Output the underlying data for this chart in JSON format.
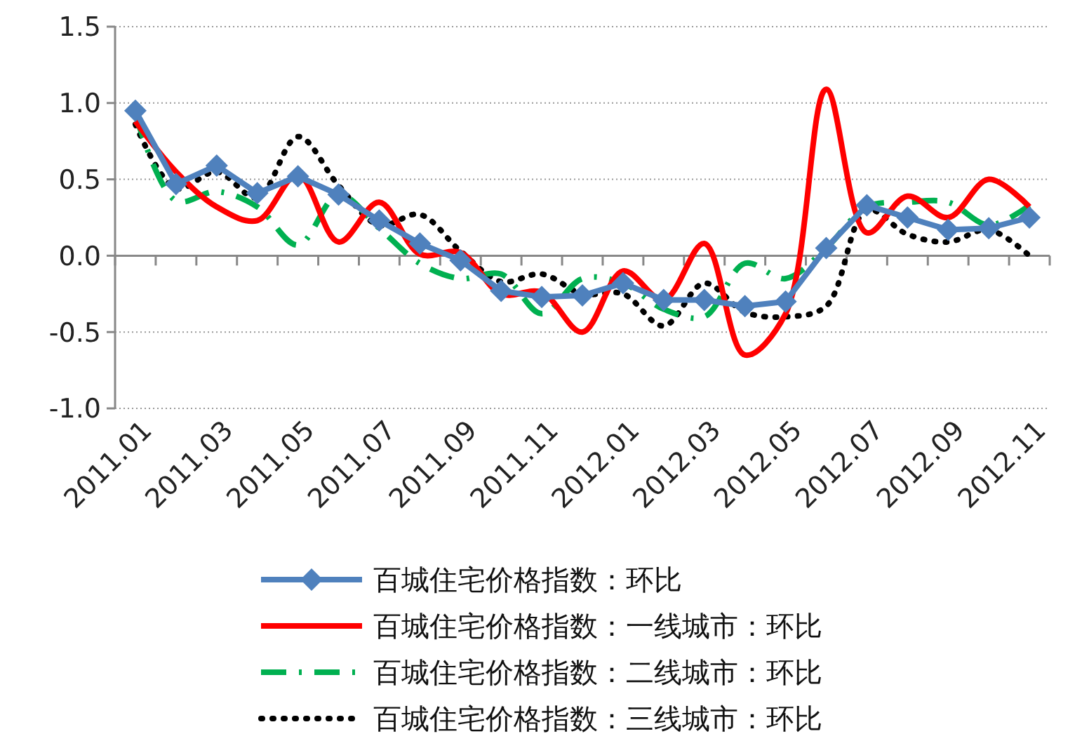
{
  "chart_data": {
    "type": "line",
    "categories": [
      "2011.01",
      null,
      "2011.03",
      null,
      "2011.05",
      null,
      "2011.07",
      null,
      "2011.09",
      null,
      "2011.11",
      null,
      "2012.01",
      null,
      "2012.03",
      null,
      "2012.05",
      null,
      "2012.07",
      null,
      "2012.09",
      null,
      "2012.11"
    ],
    "series": [
      {
        "name": "百城住宅价格指数：环比",
        "color": "#4f81bd",
        "marker": "diamond",
        "line_style": "solid",
        "values": [
          0.95,
          0.47,
          0.59,
          0.41,
          0.52,
          0.4,
          0.23,
          0.08,
          -0.03,
          -0.23,
          -0.27,
          -0.26,
          -0.18,
          -0.29,
          -0.29,
          -0.33,
          -0.3,
          0.05,
          0.33,
          0.25,
          0.17,
          0.18,
          0.25
        ]
      },
      {
        "name": "百城住宅价格指数：一线城市：环比",
        "color": "#ff0000",
        "marker": "none",
        "line_style": "solid",
        "values": [
          0.88,
          0.55,
          0.32,
          0.23,
          0.53,
          0.09,
          0.35,
          0.01,
          0.02,
          -0.25,
          -0.24,
          -0.5,
          -0.1,
          -0.29,
          0.08,
          -0.65,
          -0.38,
          1.09,
          0.15,
          0.39,
          0.25,
          0.5,
          0.32
        ]
      },
      {
        "name": "百城住宅价格指数：二线城市：环比",
        "color": "#00b050",
        "marker": "none",
        "line_style": "dashdot",
        "values": [
          0.93,
          0.36,
          0.42,
          0.32,
          0.07,
          0.4,
          0.18,
          -0.05,
          -0.15,
          -0.12,
          -0.38,
          -0.15,
          -0.18,
          -0.35,
          -0.4,
          -0.05,
          -0.15,
          0.05,
          0.32,
          0.35,
          0.35,
          0.2,
          0.33
        ]
      },
      {
        "name": "百城住宅价格指数：三线城市：环比",
        "color": "#000000",
        "marker": "none",
        "line_style": "dotted",
        "values": [
          0.86,
          0.44,
          0.55,
          0.38,
          0.78,
          0.46,
          0.2,
          0.27,
          0.03,
          -0.17,
          -0.12,
          -0.25,
          -0.25,
          -0.46,
          -0.18,
          -0.37,
          -0.4,
          -0.33,
          0.3,
          0.14,
          0.09,
          0.17,
          0.0
        ]
      }
    ],
    "ylim": [
      -1.0,
      1.5
    ],
    "yticks": [
      {
        "value": -1.0,
        "label": "-1.0"
      },
      {
        "value": -0.5,
        "label": "-0.5"
      },
      {
        "value": 0,
        "label": "0.0"
      },
      {
        "value": 0.5,
        "label": "0.5"
      },
      {
        "value": 1.0,
        "label": "1.0"
      },
      {
        "value": 1.5,
        "label": "1.5"
      }
    ],
    "grid": "y",
    "legend": "bottom"
  }
}
